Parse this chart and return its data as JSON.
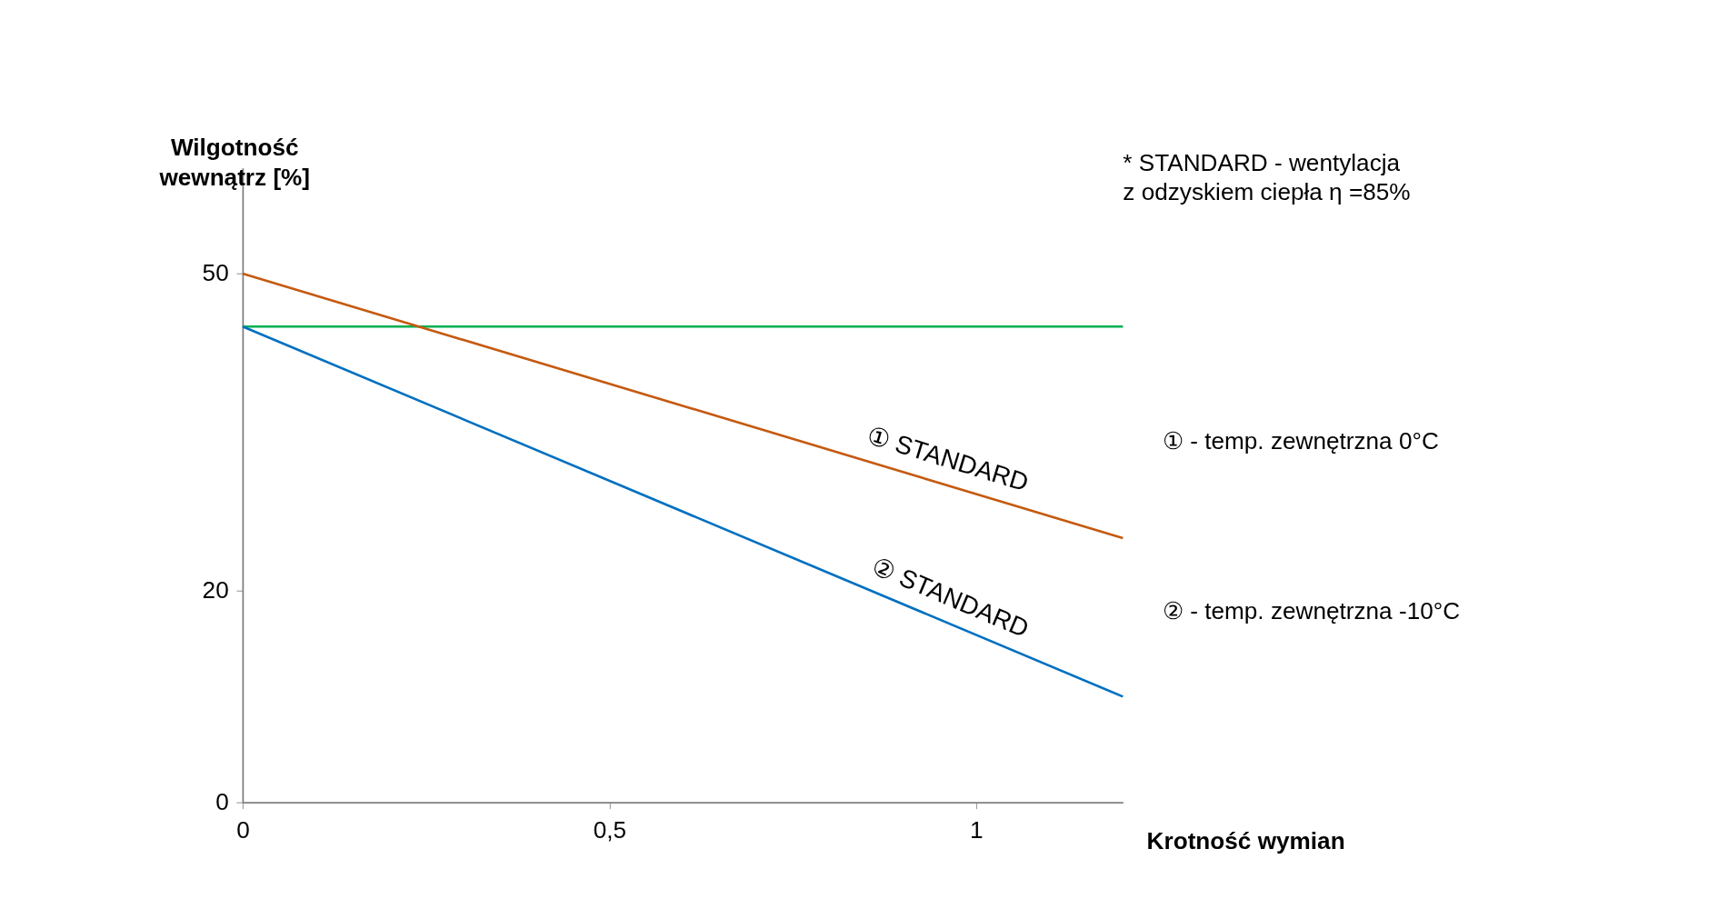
{
  "chart_data": {
    "type": "line",
    "xlabel": "Krotność wymian",
    "ylabel": "Wilgotność wewnątrz [%]",
    "x": [
      0,
      1.2
    ],
    "series": [
      {
        "color": "#00b050",
        "values": [
          45,
          45
        ]
      },
      {
        "color": "#c55a11",
        "values": [
          50,
          25
        ]
      },
      {
        "color": "#0070c0",
        "values": [
          45,
          10
        ]
      }
    ],
    "xlim": [
      0,
      1.2
    ],
    "ylim": [
      0,
      60
    ],
    "xticks": [
      0,
      {
        "value": 0.5,
        "label": "0,5"
      },
      1
    ],
    "yticks": [
      0,
      20,
      50
    ],
    "grid": false,
    "marker": "none",
    "line_style": "solid",
    "annotations": [
      {
        "text": "①  STANDARD",
        "x": 0.95,
        "y": 30
      },
      {
        "text": "②  STANDARD",
        "x": 0.95,
        "y": 17
      },
      "* STANDARD - wentylacja\nz odzyskiem ciepła η =85%",
      "①  - temp. zewnętrzna  0°C",
      "②  - temp. zewnętrzna  -10°C"
    ]
  }
}
